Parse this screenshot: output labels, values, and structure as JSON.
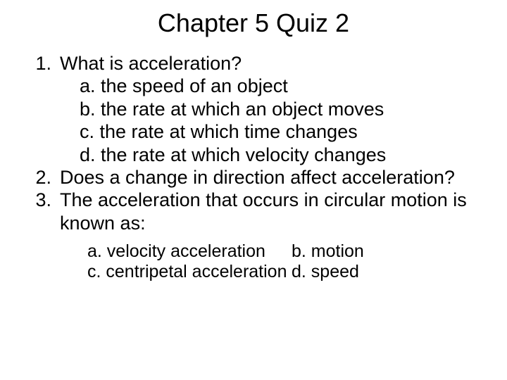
{
  "title": "Chapter 5 Quiz 2",
  "questions": [
    {
      "number": "1.",
      "text": "What is acceleration?",
      "choices": [
        "a. the speed of an object",
        "b. the rate at which an object moves",
        "c. the rate at which time changes",
        "d. the rate at which velocity changes"
      ]
    },
    {
      "number": "2.",
      "text": "Does a change in direction affect acceleration?"
    },
    {
      "number": "3.",
      "text": "The acceleration that occurs in circular motion is known as:"
    }
  ],
  "q3_choices": {
    "a": "a. velocity acceleration",
    "b": "b. motion",
    "c": "c. centripetal acceleration",
    "d": "d. speed"
  },
  "colors": {
    "background": "#ffffff",
    "text": "#000000"
  },
  "typography": {
    "title_fontsize": 36,
    "body_fontsize": 27,
    "q3_choice_fontsize": 25,
    "font_family": "Arial"
  }
}
